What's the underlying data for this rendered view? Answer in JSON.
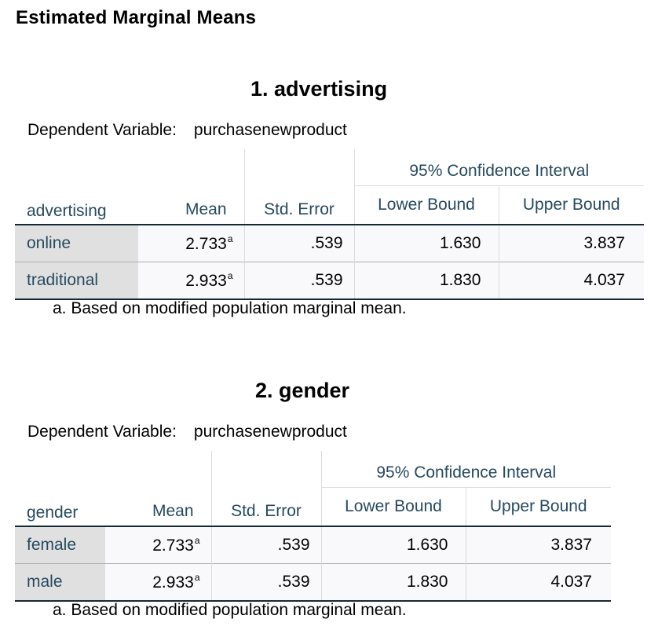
{
  "heading": "Estimated Marginal Means",
  "footnote_marker": "a",
  "tables": [
    {
      "title": "1. advertising",
      "dependent_label": "Dependent Variable:",
      "dependent_value": "purchasenewproduct",
      "ci_header": "95% Confidence Interval",
      "columns": [
        "advertising",
        "Mean",
        "Std. Error",
        "Lower Bound",
        "Upper Bound"
      ],
      "rows": [
        {
          "label": "online",
          "mean": "2.733",
          "std_error": ".539",
          "lower": "1.630",
          "upper": "3.837"
        },
        {
          "label": "traditional",
          "mean": "2.933",
          "std_error": ".539",
          "lower": "1.830",
          "upper": "4.037"
        }
      ],
      "footnote": "a. Based on modified population marginal mean."
    },
    {
      "title": "2. gender",
      "dependent_label": "Dependent Variable:",
      "dependent_value": "purchasenewproduct",
      "ci_header": "95% Confidence Interval",
      "columns": [
        "gender",
        "Mean",
        "Std. Error",
        "Lower Bound",
        "Upper Bound"
      ],
      "rows": [
        {
          "label": "female",
          "mean": "2.733",
          "std_error": ".539",
          "lower": "1.630",
          "upper": "3.837"
        },
        {
          "label": "male",
          "mean": "2.933",
          "std_error": ".539",
          "lower": "1.830",
          "upper": "4.037"
        }
      ],
      "footnote": "a. Based on modified population marginal mean."
    }
  ]
}
